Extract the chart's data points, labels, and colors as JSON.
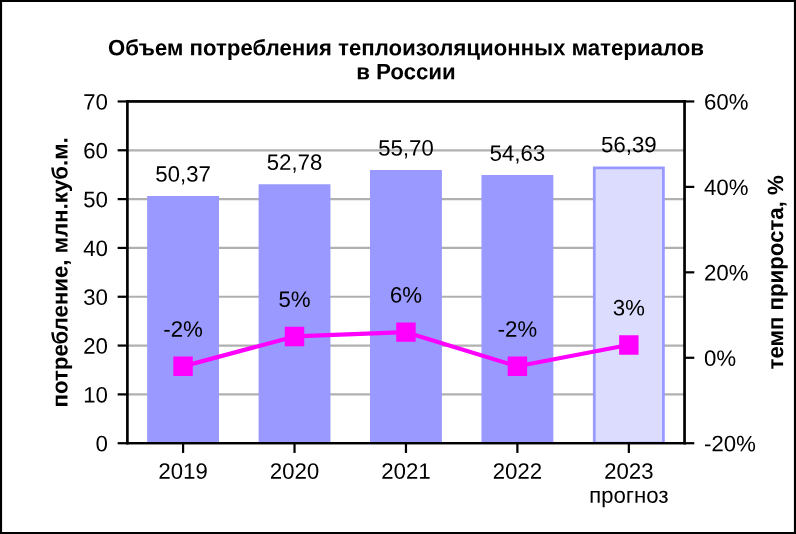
{
  "chart_data": {
    "type": "bar",
    "title": "Объем потребления теплоизоляционных материалов\nв России",
    "categories": [
      "2019",
      "2020",
      "2021",
      "2022",
      "2023\nпрогноз"
    ],
    "ylabel": "потребление, млн.куб.м.",
    "y2label": "темп прироста, %",
    "series": [
      {
        "color": "#9999ff",
        "colors": [
          "#9999ff",
          "#9999ff",
          "#9999ff",
          "#9999ff",
          "#dcdcff"
        ],
        "values": [
          50.37,
          52.78,
          55.7,
          54.63,
          56.39
        ],
        "value_labels": [
          "50,37",
          "52,78",
          "55,70",
          "54,63",
          "56,39"
        ]
      },
      {
        "type": "line",
        "axis": "y2",
        "color": "#ff00ff",
        "marker": "square",
        "values": [
          -2,
          5,
          6,
          -2,
          3
        ],
        "value_labels": [
          "-2%",
          "5%",
          "6%",
          "-2%",
          "3%"
        ]
      }
    ],
    "ylim": [
      0,
      70
    ],
    "yticks": [
      0,
      10,
      20,
      30,
      40,
      50,
      60,
      70
    ],
    "y2lim": [
      -20,
      60
    ],
    "y2ticks": [
      {
        "value": -20,
        "label": "-20%"
      },
      {
        "value": 0,
        "label": "0%"
      },
      {
        "value": 20,
        "label": "20%"
      },
      {
        "value": 40,
        "label": "40%"
      },
      {
        "value": 60,
        "label": "60%"
      }
    ],
    "grid": "y"
  }
}
